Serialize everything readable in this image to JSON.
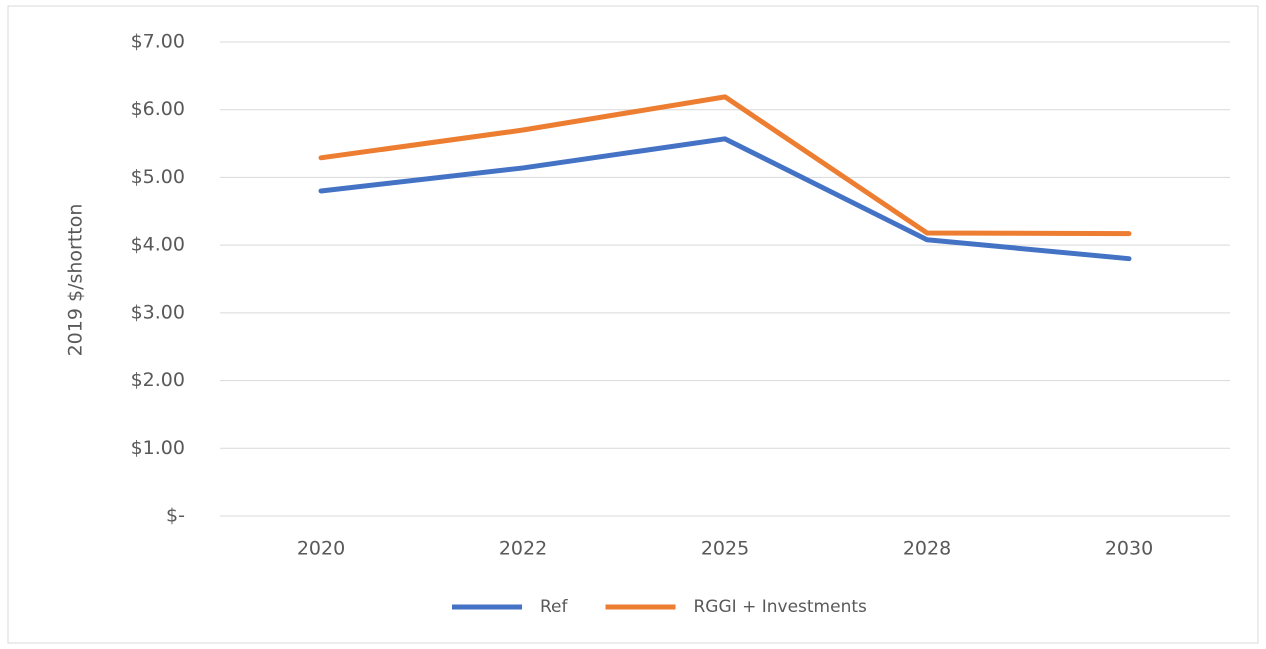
{
  "chart_data": {
    "type": "line",
    "y_label": "2019 $/shortton",
    "categories": [
      "2020",
      "2022",
      "2025",
      "2028",
      "2030"
    ],
    "series": [
      {
        "name": "Ref",
        "color": "#4472c4",
        "values": [
          4.8,
          5.14,
          5.57,
          4.08,
          3.8
        ]
      },
      {
        "name": "RGGI + Investments",
        "color": "#ed7d31",
        "values": [
          5.29,
          5.7,
          6.19,
          4.18,
          4.17
        ]
      }
    ],
    "ylim": [
      0,
      7
    ],
    "yticks": [
      {
        "value": 0,
        "label": "$-"
      },
      {
        "value": 1,
        "label": "$1.00"
      },
      {
        "value": 2,
        "label": "$2.00"
      },
      {
        "value": 3,
        "label": "$3.00"
      },
      {
        "value": 4,
        "label": "$4.00"
      },
      {
        "value": 5,
        "label": "$5.00"
      },
      {
        "value": 6,
        "label": "$6.00"
      },
      {
        "value": 7,
        "label": "$7.00"
      }
    ],
    "grid": true,
    "legend": "bottom"
  }
}
